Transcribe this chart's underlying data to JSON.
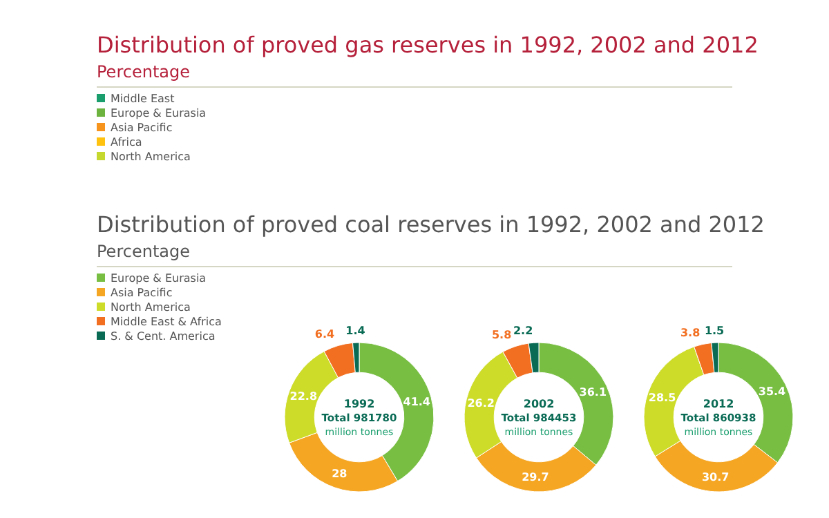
{
  "chart_data": [
    {
      "type": "other",
      "title": "Distribution of proved gas reserves in 1992, 2002 and 2012",
      "subtitle": "Percentage",
      "categories": [
        "Middle East",
        "Europe & Eurasia",
        "Asia Pacific",
        "Africa",
        "North America"
      ],
      "colors": [
        "#1a9e6e",
        "#6db33f",
        "#f7941d",
        "#ffc20e",
        "#c4d82e"
      ]
    },
    {
      "type": "donut",
      "title": "Distribution of proved coal reserves in 1992, 2002 and 2012",
      "subtitle": "Percentage",
      "categories": [
        "Europe & Eurasia",
        "Asia Pacific",
        "North America",
        "Middle East & Africa",
        "S. & Cent. America"
      ],
      "colors": [
        "#78be43",
        "#f5a623",
        "#cddc29",
        "#f26f21",
        "#0a6b55"
      ],
      "legend": "top left",
      "data_labels": true,
      "series": [
        {
          "name": "1992",
          "values": [
            41.4,
            28.0,
            22.8,
            6.4,
            1.4
          ]
        },
        {
          "name": "2002",
          "values": [
            36.1,
            29.7,
            26.2,
            5.8,
            2.2
          ]
        },
        {
          "name": "2012",
          "values": [
            35.4,
            30.7,
            28.5,
            3.8,
            1.5
          ]
        }
      ],
      "annotations": [
        "Total 981780",
        "Total 984453",
        "Total 860938",
        "million tonnes"
      ]
    }
  ]
}
